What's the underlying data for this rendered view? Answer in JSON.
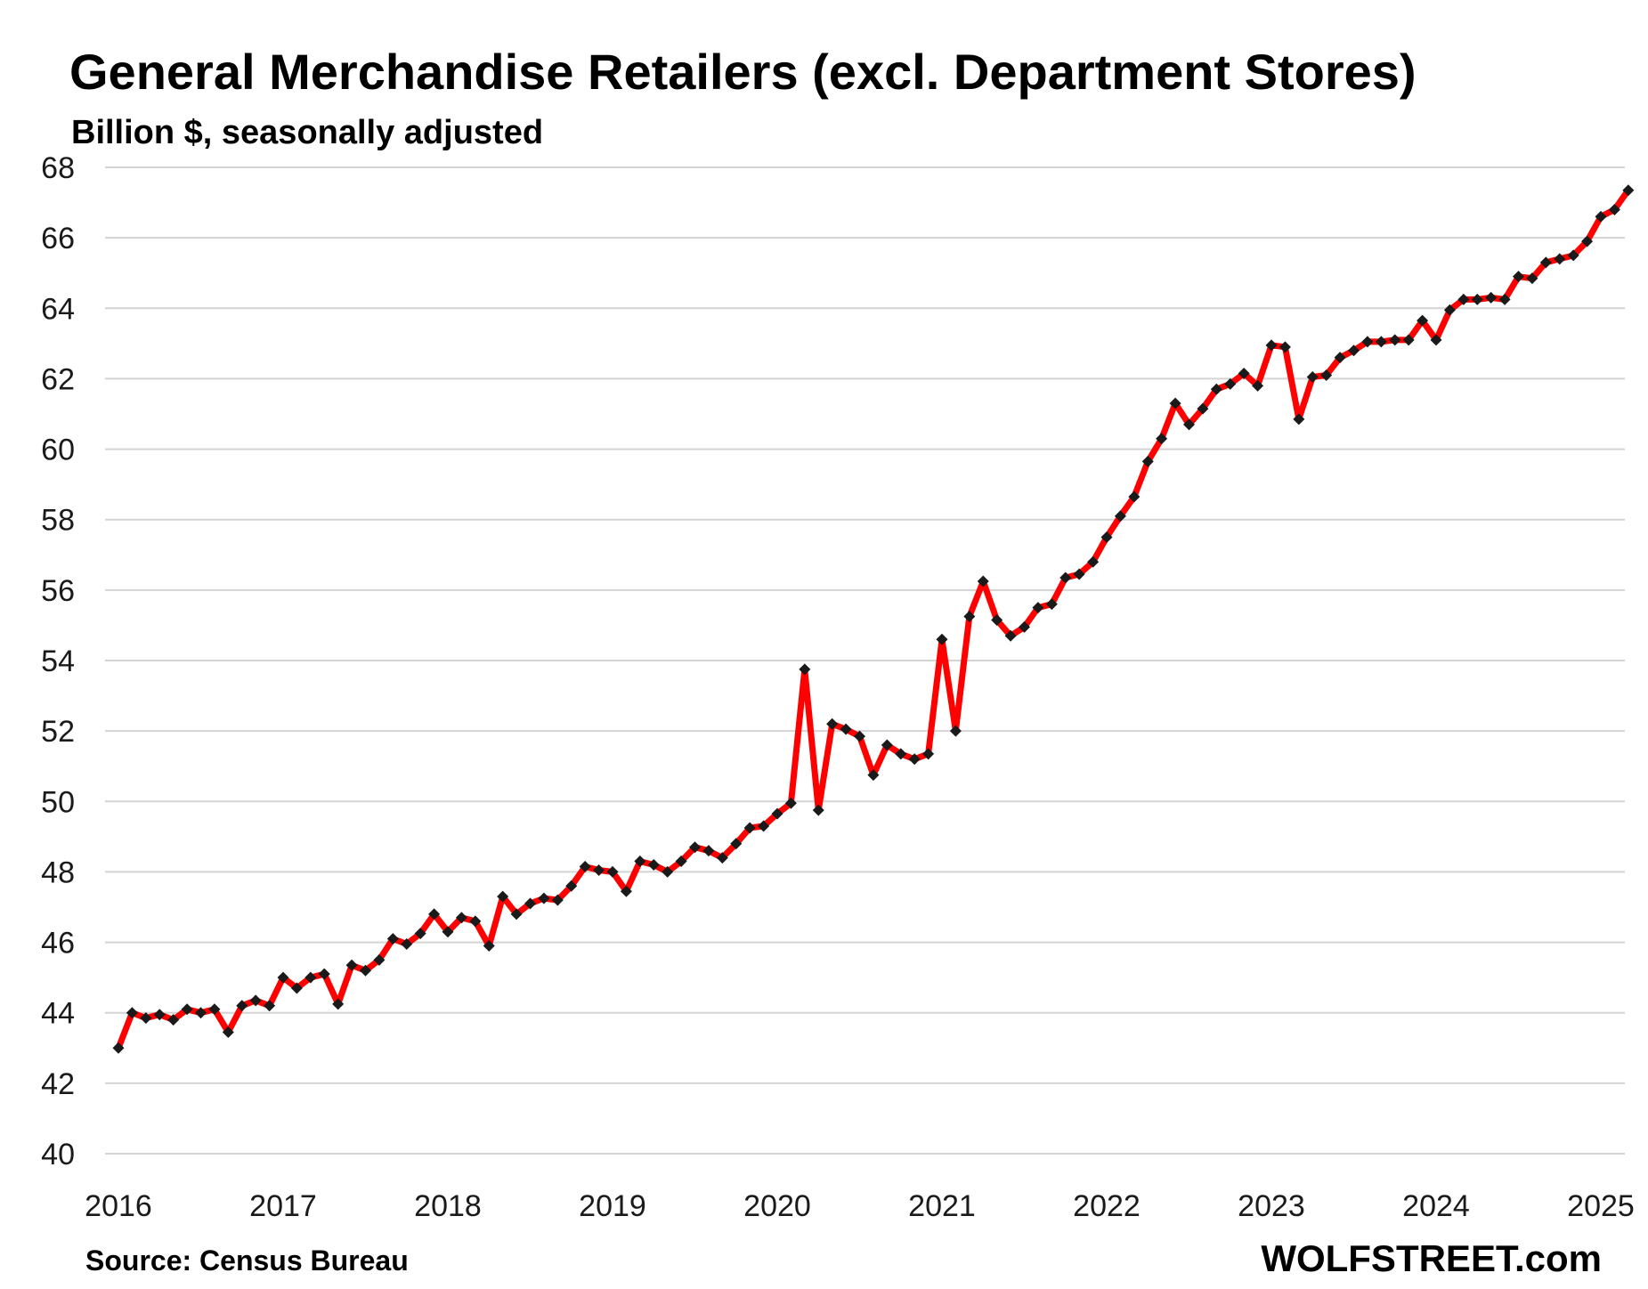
{
  "chart_data": {
    "type": "line",
    "title": "General Merchandise Retailers (excl. Department Stores)",
    "subtitle": "Billion $, seasonally adjusted",
    "xlabel": "",
    "ylabel": "",
    "ylim": [
      40,
      68
    ],
    "y_ticks": [
      "40",
      "42",
      "44",
      "46",
      "48",
      "50",
      "52",
      "54",
      "56",
      "58",
      "60",
      "62",
      "64",
      "66",
      "68"
    ],
    "x_ticks": [
      "2016",
      "2017",
      "2018",
      "2019",
      "2020",
      "2021",
      "2022",
      "2023",
      "2024",
      "2025"
    ],
    "grid": true,
    "line_color": "#ff0000",
    "marker_color": "#1a1a1a",
    "series": [
      {
        "x_start": "2016-01",
        "frequency": "monthly",
        "values": [
          43.0,
          44.0,
          43.85,
          43.95,
          43.8,
          44.1,
          44.0,
          44.1,
          43.45,
          44.2,
          44.35,
          44.2,
          45.0,
          44.7,
          45.0,
          45.1,
          44.25,
          45.35,
          45.2,
          45.5,
          46.1,
          45.95,
          46.25,
          46.8,
          46.3,
          46.7,
          46.6,
          45.9,
          47.3,
          46.8,
          47.1,
          47.25,
          47.2,
          47.6,
          48.15,
          48.05,
          48.0,
          47.45,
          48.3,
          48.2,
          48.0,
          48.3,
          48.7,
          48.6,
          48.4,
          48.8,
          49.25,
          49.3,
          49.65,
          49.95,
          53.75,
          49.75,
          52.2,
          52.05,
          51.85,
          50.75,
          51.6,
          51.35,
          51.2,
          51.35,
          54.6,
          52.0,
          55.25,
          56.25,
          55.15,
          54.7,
          54.95,
          55.5,
          55.6,
          56.35,
          56.45,
          56.8,
          57.5,
          58.1,
          58.65,
          59.65,
          60.3,
          61.3,
          60.7,
          61.15,
          61.7,
          61.85,
          62.15,
          61.8,
          62.95,
          62.9,
          60.85,
          62.05,
          62.1,
          62.6,
          62.8,
          63.05,
          63.05,
          63.1,
          63.1,
          63.65,
          63.1,
          63.95,
          64.25,
          64.25,
          64.3,
          64.25,
          64.9,
          64.85,
          65.3,
          65.4,
          65.5,
          65.9,
          66.6,
          66.8,
          67.35
        ]
      }
    ]
  },
  "footer": {
    "source": "Source: Census Bureau",
    "brand": "WOLFSTREET.com"
  }
}
